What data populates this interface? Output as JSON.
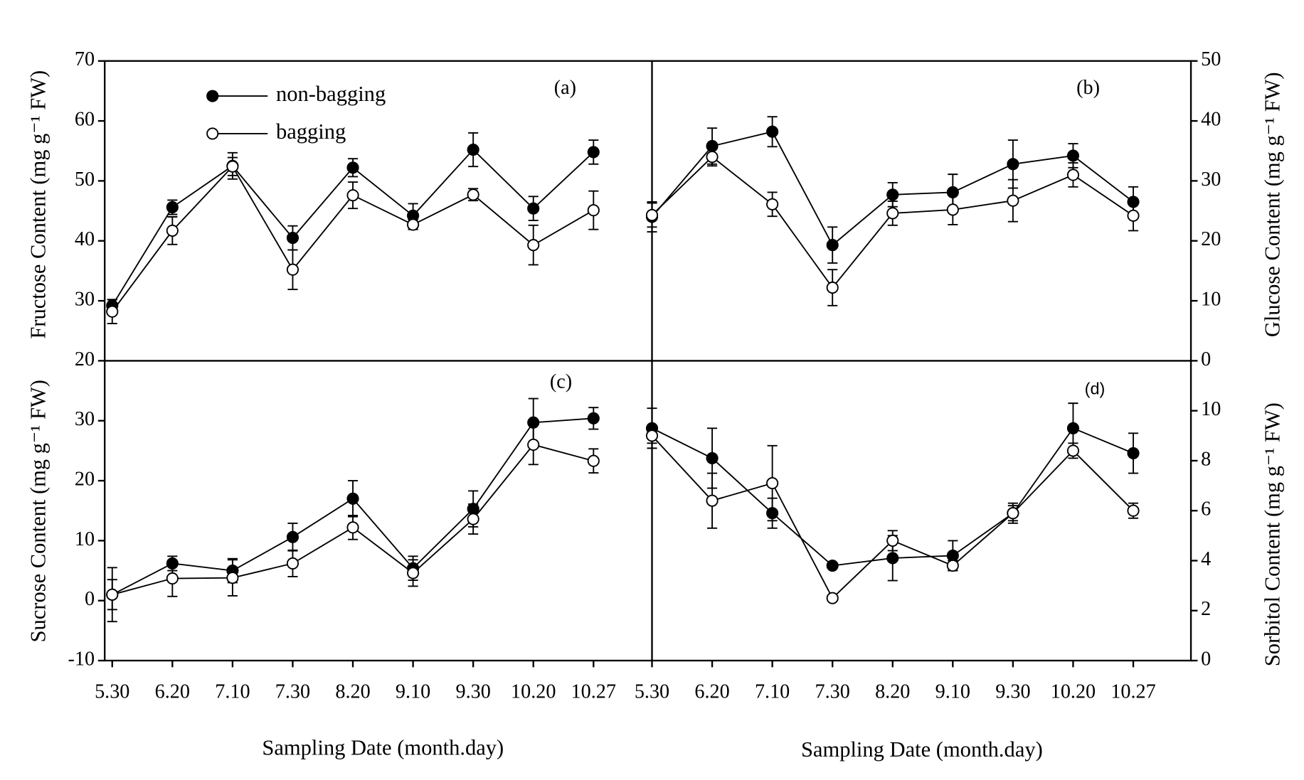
{
  "chart_data": [
    {
      "type": "line",
      "panel_label": "(a)",
      "y_label": "Fructose Content (mg g⁻¹ FW)",
      "ylim": [
        20,
        70
      ],
      "yticks": [
        20,
        30,
        40,
        50,
        60,
        70
      ],
      "legend": "upper left",
      "series": [
        {
          "name": "non-bagging",
          "color": "#000000",
          "values": [
            29.2,
            45.6,
            52.5,
            40.5,
            52.2,
            44.2,
            55.2,
            45.4,
            54.8
          ],
          "errors": [
            1.0,
            1.2,
            2.2,
            2.0,
            1.5,
            2.0,
            2.8,
            2.0,
            2.0
          ]
        },
        {
          "name": "bagging",
          "color": "#ffffff",
          "values": [
            28.2,
            41.7,
            52.4,
            35.2,
            47.6,
            42.7,
            47.7,
            39.3,
            45.1
          ],
          "errors": [
            2.0,
            2.3,
            1.5,
            3.3,
            2.2,
            0.8,
            1.0,
            3.3,
            3.2
          ]
        }
      ]
    },
    {
      "type": "line",
      "panel_label": "(b)",
      "y_label": "Glucose Content (mg g⁻¹ FW)",
      "ylim": [
        0,
        50
      ],
      "yticks": [
        0,
        10,
        20,
        30,
        40,
        50
      ],
      "series": [
        {
          "color": "#000000",
          "values": [
            24.0,
            35.8,
            38.2,
            19.3,
            27.7,
            28.1,
            32.8,
            34.2,
            26.5
          ],
          "errors": [
            2.5,
            3.0,
            2.5,
            3.0,
            2.0,
            3.0,
            4.0,
            2.0,
            2.5
          ]
        },
        {
          "color": "#ffffff",
          "values": [
            24.3,
            34.0,
            26.1,
            12.2,
            24.6,
            25.2,
            26.7,
            31.0,
            24.2
          ],
          "errors": [
            2.0,
            1.5,
            2.0,
            3.0,
            2.0,
            2.5,
            3.5,
            2.0,
            2.5
          ]
        }
      ]
    },
    {
      "type": "line",
      "panel_label": "(c)",
      "y_label": "Sucrose Content (mg g⁻¹ FW)",
      "x_label": "Sampling Date (month.day)",
      "categories": [
        "5.30",
        "6.20",
        "7.10",
        "7.30",
        "8.20",
        "9.10",
        "9.30",
        "10.20",
        "10.27"
      ],
      "ylim": [
        -10,
        40
      ],
      "yticks": [
        -10,
        0,
        10,
        20,
        30
      ],
      "series": [
        {
          "color": "#000000",
          "values": [
            1.0,
            6.2,
            5.0,
            10.6,
            17.0,
            5.4,
            15.3,
            29.7,
            30.4
          ],
          "errors": [
            4.5,
            1.2,
            2.0,
            2.3,
            3.0,
            2.0,
            3.0,
            4.0,
            1.8
          ]
        },
        {
          "color": "#ffffff",
          "values": [
            1.0,
            3.7,
            3.8,
            6.2,
            12.2,
            4.6,
            13.6,
            26.0,
            23.3
          ],
          "errors": [
            2.5,
            3.0,
            3.0,
            2.2,
            2.0,
            2.2,
            2.5,
            3.3,
            2.0
          ]
        }
      ]
    },
    {
      "type": "line",
      "panel_label": "(d)",
      "y_label": "Sorbitol Content (mg g⁻¹ FW)",
      "x_label": "Sampling Date (month.day)",
      "categories": [
        "5.30",
        "6.20",
        "7.10",
        "7.30",
        "8.20",
        "9.10",
        "9.30",
        "10.20",
        "10.27"
      ],
      "ylim": [
        0,
        12
      ],
      "yticks": [
        0,
        2,
        4,
        6,
        8,
        10
      ],
      "series": [
        {
          "color": "#000000",
          "values": [
            9.3,
            8.1,
            5.9,
            3.8,
            4.1,
            4.2,
            5.9,
            9.3,
            8.3
          ],
          "errors": [
            0.8,
            1.2,
            0.6,
            0.1,
            0.9,
            0.6,
            0.3,
            1.0,
            0.8
          ]
        },
        {
          "color": "#ffffff",
          "values": [
            9.0,
            6.4,
            7.1,
            2.5,
            4.8,
            3.8,
            5.9,
            8.4,
            6.0
          ],
          "errors": [
            0.3,
            1.1,
            1.5,
            0.1,
            0.4,
            0.2,
            0.4,
            0.3,
            0.3
          ]
        }
      ]
    }
  ]
}
